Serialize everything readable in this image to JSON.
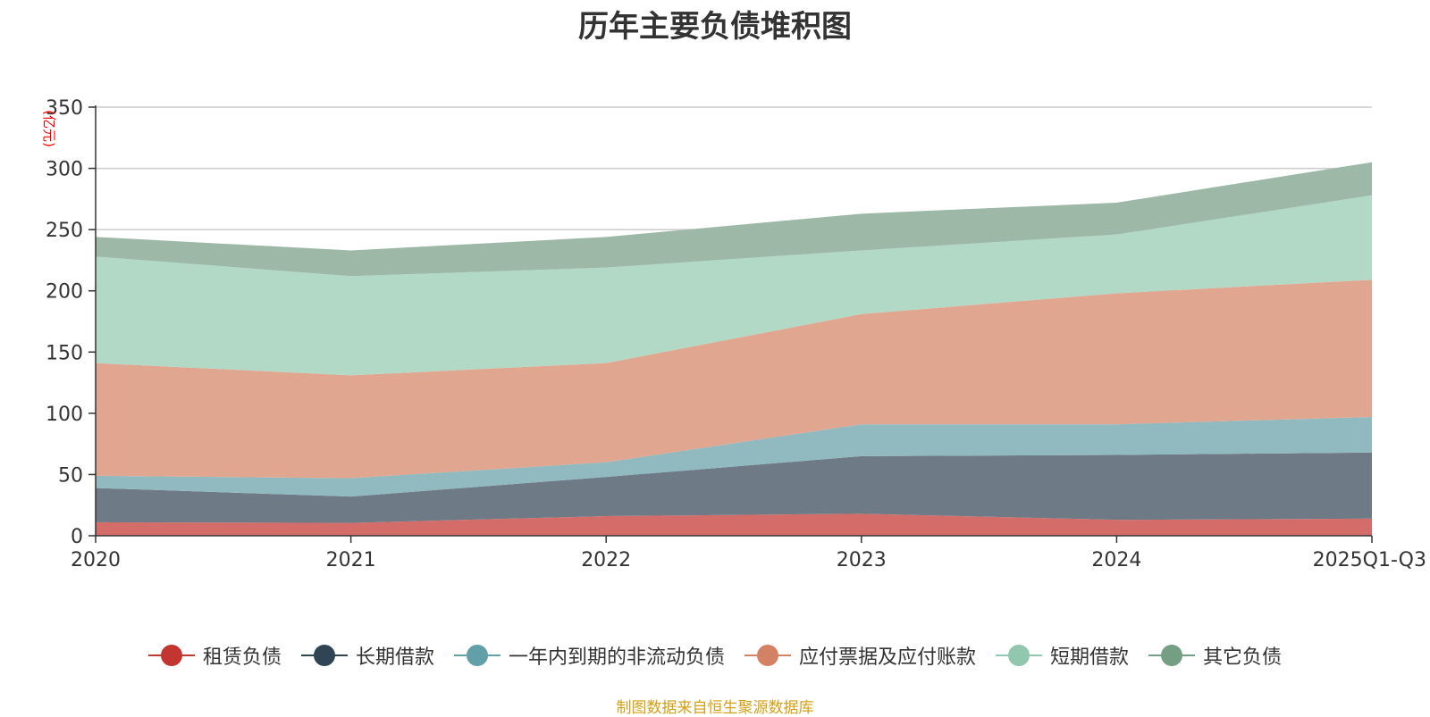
{
  "chart_data": {
    "type": "area",
    "stacked": true,
    "title": "历年主要负债堆积图",
    "ylabel": "(亿元)",
    "xlabel": "",
    "ylim": [
      0,
      350
    ],
    "yticks": [
      0,
      50,
      100,
      150,
      200,
      250,
      300,
      350
    ],
    "grid": true,
    "legend_position": "bottom",
    "categories": [
      "2020",
      "2021",
      "2022",
      "2023",
      "2024",
      "2025Q1-Q3"
    ],
    "series": [
      {
        "name": "租赁负债",
        "color": "#c23531",
        "area_color": "#d46d69",
        "values": [
          11,
          10.5,
          16,
          18,
          13,
          14
        ]
      },
      {
        "name": "长期借款",
        "color": "#2f4554",
        "area_color": "#6e7b87",
        "values": [
          28,
          21.5,
          32,
          47,
          53,
          54
        ]
      },
      {
        "name": "一年内到期的非流动负债",
        "color": "#61a0a8",
        "area_color": "#90bac0",
        "values": [
          10,
          15,
          12,
          26,
          25,
          29
        ]
      },
      {
        "name": "应付票据及应付账款",
        "color": "#d48265",
        "area_color": "#e0a690",
        "values": [
          92,
          84,
          81,
          90,
          107,
          112
        ]
      },
      {
        "name": "短期借款",
        "color": "#91c7ae",
        "area_color": "#b2d8c6",
        "values": [
          87,
          81,
          78,
          52,
          48,
          69
        ]
      },
      {
        "name": "其它负债",
        "color": "#749f83",
        "area_color": "#9db8a7",
        "values": [
          16,
          21,
          25,
          30,
          26,
          27
        ]
      }
    ]
  },
  "source_note": "制图数据来自恒生聚源数据库"
}
